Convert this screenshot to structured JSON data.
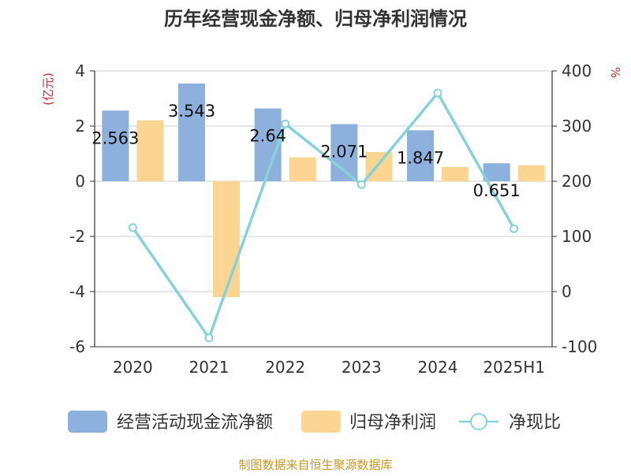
{
  "chart_data": {
    "type": "bar",
    "title": "历年经营现金净额、归母净利润情况",
    "categories": [
      "2020",
      "2021",
      "2022",
      "2023",
      "2024",
      "2025H1"
    ],
    "y_left": {
      "label": "(亿元)",
      "ylim": [
        -6,
        4
      ],
      "ticks": [
        -6,
        -4,
        -2,
        0,
        2,
        4
      ]
    },
    "y_right": {
      "label": "%",
      "ylim": [
        -100,
        400
      ],
      "ticks": [
        -100,
        0,
        100,
        200,
        300,
        400
      ]
    },
    "series": [
      {
        "name": "经营活动现金流净额",
        "type": "bar",
        "axis": "left",
        "color": "#8eb0dc",
        "values": [
          2.563,
          3.543,
          2.64,
          2.071,
          1.847,
          0.651
        ],
        "labels": [
          "2.563",
          "3.543",
          "2.64",
          "2.071",
          "1.847",
          "0.651"
        ]
      },
      {
        "name": "归母净利润",
        "type": "bar",
        "axis": "left",
        "color": "#fdd592",
        "values": [
          2.21,
          -4.2,
          0.87,
          1.06,
          0.52,
          0.58
        ]
      },
      {
        "name": "净现比",
        "type": "line",
        "axis": "right",
        "color": "#86d2d8",
        "values": [
          116,
          -84,
          304,
          194,
          360,
          114
        ]
      }
    ],
    "grid": true,
    "legend_position": "bottom"
  },
  "source": "制图数据来自恒生聚源数据库"
}
